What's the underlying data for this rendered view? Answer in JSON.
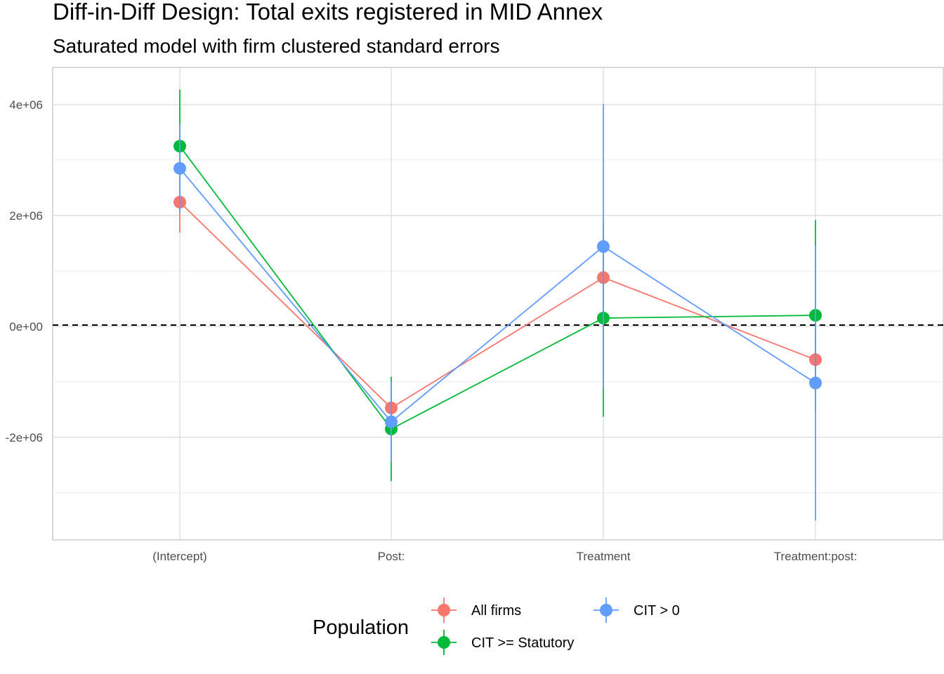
{
  "chart_data": {
    "type": "scatter",
    "title": "Diff-in-Diff Design: Total exits registered in MID Annex",
    "subtitle": "Saturated model with firm clustered standard errors",
    "xlabel": "",
    "ylabel": "",
    "categories": [
      "(Intercept)",
      "Post:",
      "Treatment",
      "Treatment:post:"
    ],
    "y_ticks": [
      {
        "value": 4000000,
        "label": "4e+06"
      },
      {
        "value": 2000000,
        "label": "2e+06"
      },
      {
        "value": 0,
        "label": "0e+00"
      },
      {
        "value": -2000000,
        "label": "-2e+06"
      }
    ],
    "ylim": [
      -3850000,
      4670000
    ],
    "grid": true,
    "reference_line": {
      "y": 0,
      "style": "dashed",
      "color": "#000000"
    },
    "legend": {
      "title": "Population",
      "placement": "bottom"
    },
    "series": [
      {
        "name": "All firms",
        "color": "#F8766D",
        "estimates": [
          2240000,
          -1470000,
          880000,
          -600000
        ],
        "ci_low": [
          1690000,
          -1920000,
          160000,
          -1080000
        ],
        "ci_high": [
          2790000,
          -1020000,
          1600000,
          -120000
        ]
      },
      {
        "name": "CIT >= Statutory",
        "color": "#00BA38",
        "estimates": [
          3250000,
          -1850000,
          150000,
          200000
        ],
        "ci_low": [
          2230000,
          -2790000,
          -1630000,
          -1520000
        ],
        "ci_high": [
          4270000,
          -910000,
          1930000,
          1920000
        ]
      },
      {
        "name": "CIT > 0",
        "color": "#619CFF",
        "estimates": [
          2850000,
          -1720000,
          1440000,
          -1020000
        ],
        "ci_low": [
          2050000,
          -2450000,
          -1130000,
          -3500000
        ],
        "ci_high": [
          3650000,
          -990000,
          4010000,
          1460000
        ]
      }
    ]
  }
}
